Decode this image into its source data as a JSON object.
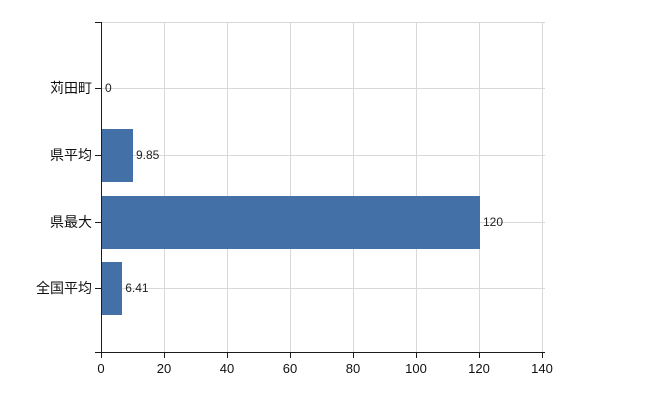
{
  "chart_data": {
    "type": "bar",
    "orientation": "horizontal",
    "categories": [
      "苅田町",
      "県平均",
      "県最大",
      "全国平均"
    ],
    "values": [
      0,
      9.85,
      120,
      6.41
    ],
    "value_labels": [
      "0",
      "9.85",
      "120",
      "6.41"
    ],
    "x_ticks": [
      0,
      20,
      40,
      60,
      80,
      100,
      120,
      140
    ],
    "x_tick_labels": [
      "0",
      "20",
      "40",
      "60",
      "80",
      "100",
      "120",
      "140"
    ],
    "xlim": [
      0,
      140
    ],
    "grid": true,
    "legend": false,
    "colors": {
      "bar": "#4371a7",
      "gridline": "#d8d8d8",
      "axis": "#1c1c1c",
      "text": "#111111",
      "background": "#ffffff"
    }
  }
}
